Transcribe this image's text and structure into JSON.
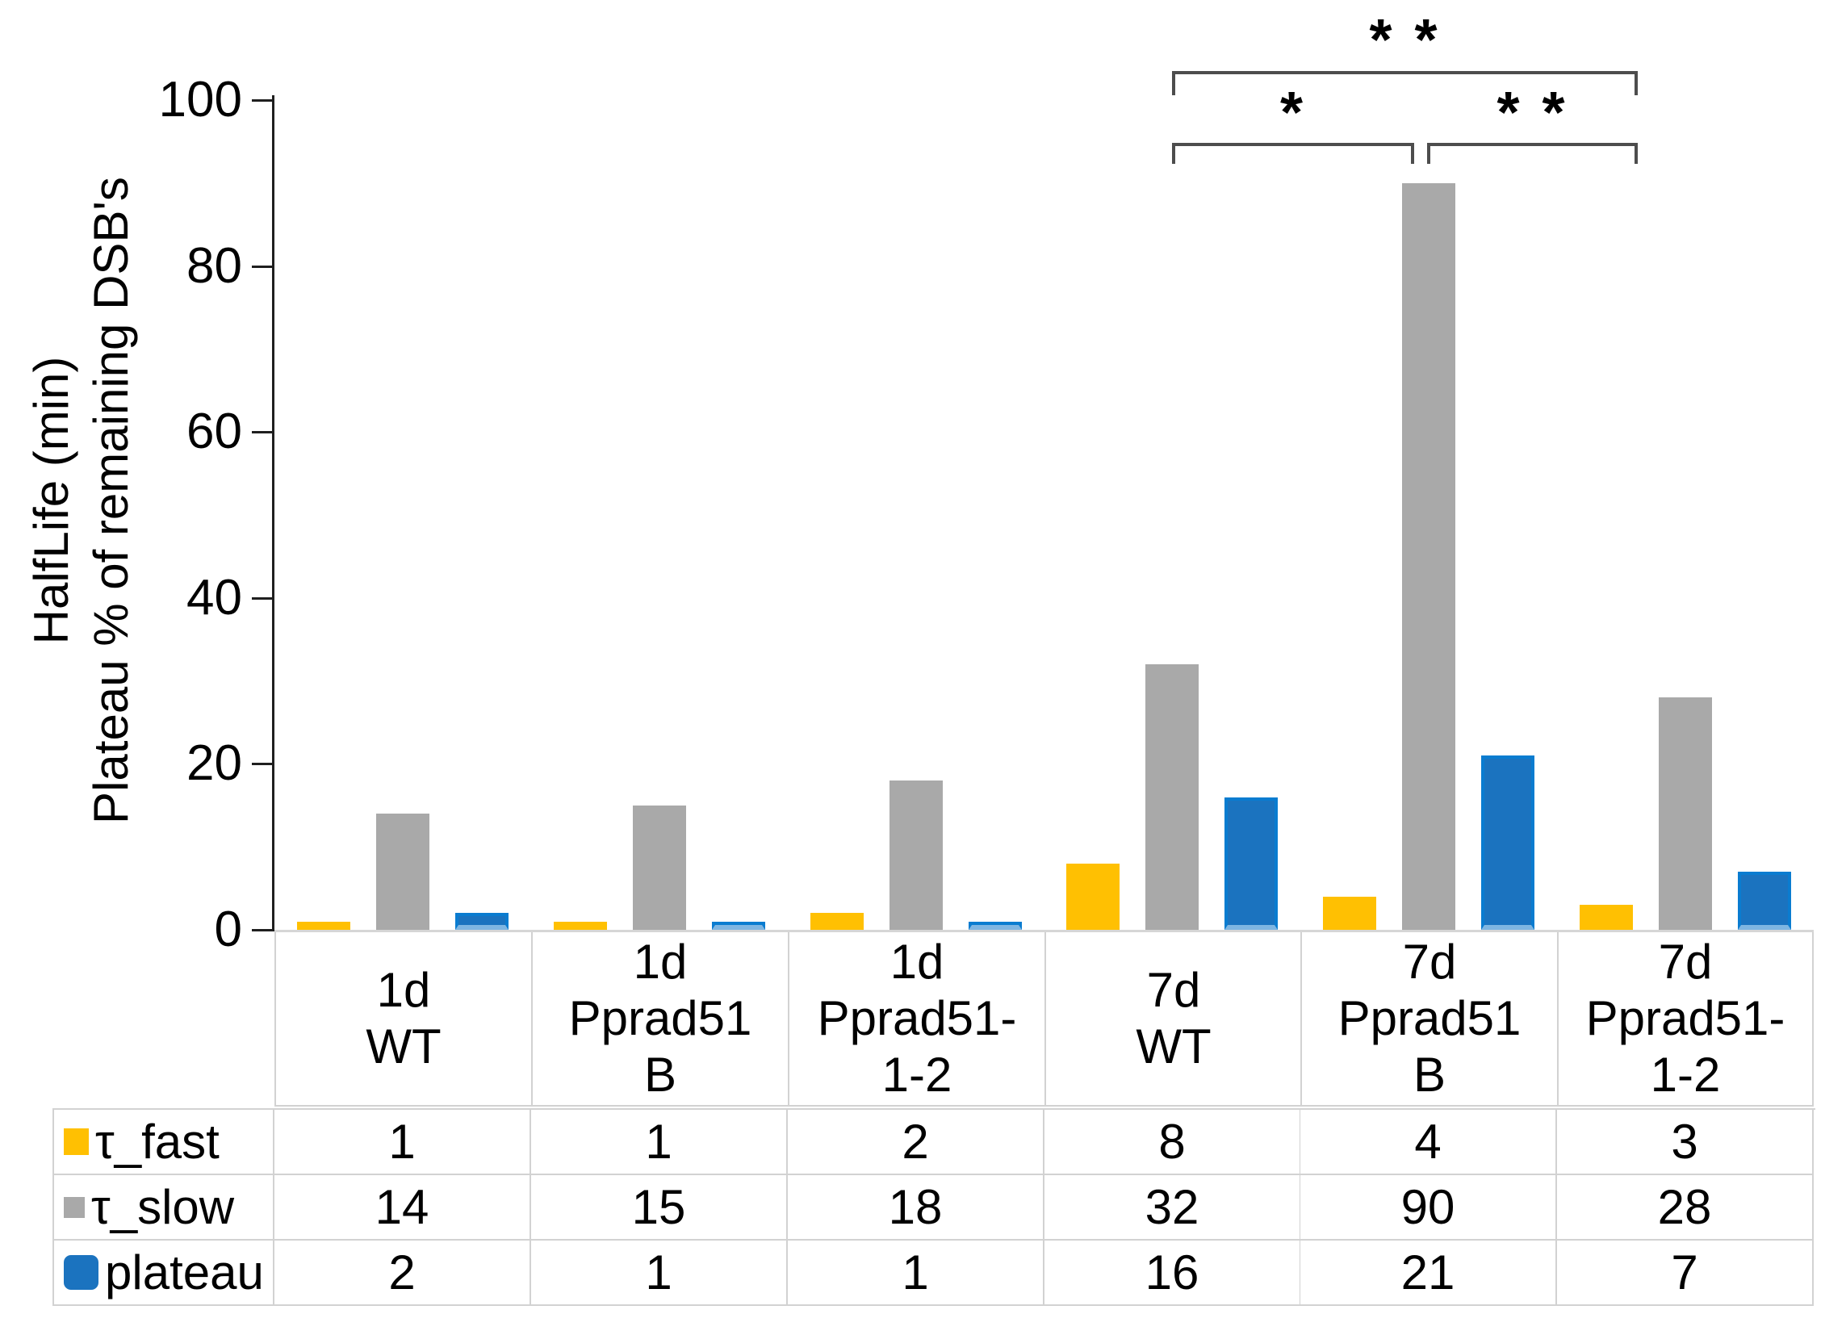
{
  "chart_data": {
    "type": "bar",
    "title": "",
    "ylabel_line1": "HalfLife (min)",
    "ylabel_line2": "Plateau % of remaining DSB's",
    "ylim": [
      0,
      100
    ],
    "yticks": [
      0,
      20,
      40,
      60,
      80,
      100
    ],
    "grid": false,
    "legend_position": "table-left-column",
    "categories": [
      {
        "id": "1d WT",
        "lines": [
          "1d",
          "WT"
        ]
      },
      {
        "id": "1d Pprad51 B",
        "lines": [
          "1d",
          "Pprad51",
          "B"
        ]
      },
      {
        "id": "1d Pprad51-1-2",
        "lines": [
          "1d",
          "Pprad51-",
          "1-2"
        ]
      },
      {
        "id": "7d WT",
        "lines": [
          "7d",
          "WT"
        ]
      },
      {
        "id": "7d Pprad51 B",
        "lines": [
          "7d",
          "Pprad51",
          "B"
        ]
      },
      {
        "id": "7d Pprad51-1-2",
        "lines": [
          "7d",
          "Pprad51-",
          "1-2"
        ]
      }
    ],
    "series": [
      {
        "key": "tau_fast",
        "name": "τ_fast",
        "color": "#FFC002",
        "values": [
          1,
          1,
          2,
          8,
          4,
          3
        ]
      },
      {
        "key": "tau_slow",
        "name": "τ_slow",
        "color": "#A9A9A9",
        "values": [
          14,
          15,
          18,
          32,
          90,
          28
        ]
      },
      {
        "key": "plateau",
        "name": "plateau",
        "color": "#1B73BF",
        "border_color": "#0A7CD0",
        "values": [
          2,
          1,
          1,
          16,
          21,
          7
        ]
      }
    ],
    "significance": [
      {
        "label": "* *",
        "from": "7d WT",
        "to": "7d Pprad51-1-2",
        "row": "top"
      },
      {
        "label": "*",
        "from": "7d WT",
        "to": "7d Pprad51 B",
        "row": "mid"
      },
      {
        "label": "* *",
        "from": "7d Pprad51 B",
        "to": "7d Pprad51-1-2",
        "row": "mid"
      }
    ],
    "data_table": {
      "row_labels": [
        "τ_fast",
        "τ_slow",
        "plateau"
      ],
      "rows": [
        [
          1,
          1,
          2,
          8,
          4,
          3
        ],
        [
          14,
          15,
          18,
          32,
          90,
          28
        ],
        [
          2,
          1,
          1,
          16,
          21,
          7
        ]
      ]
    }
  }
}
